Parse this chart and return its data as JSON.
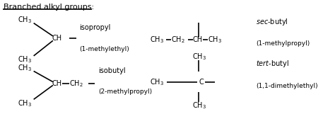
{
  "title": "Branched alkyl groups:",
  "bg": "#ffffff",
  "fs": 8.0,
  "fs_small": 7.0,
  "lw": 1.2,
  "isopropyl_name": "isopropyl",
  "isopropyl_iupac": "(1-methylethyl)",
  "isobutyl_name": "isobutyl",
  "isobutyl_iupac": "(2-methylpropyl)",
  "sec_italic": "sec",
  "sec_rest": "-butyl",
  "sec_iupac": "(1-methylpropyl)",
  "tert_italic": "tert",
  "tert_rest": "-butyl",
  "tert_iupac": "(1,1-dimethylethyl)"
}
